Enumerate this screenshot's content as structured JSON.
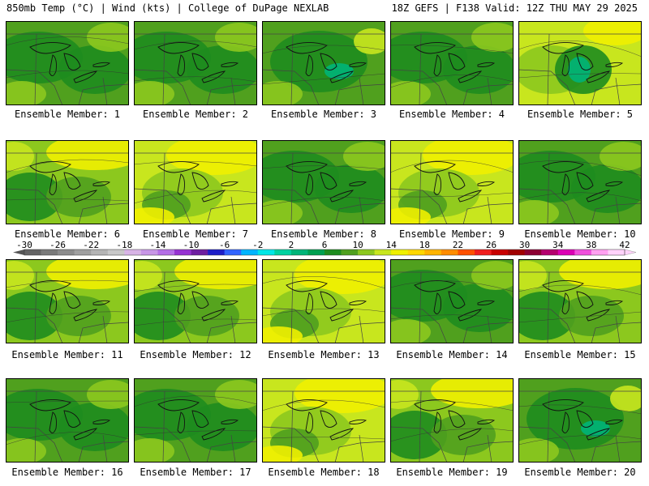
{
  "header": {
    "left": "850mb Temp (°C) | Wind (kts) | College of DuPage NEXLAB",
    "right": "18Z GEFS | F138 Valid: 12Z THU MAY 29 2025"
  },
  "colorbar": {
    "labels": [
      "-30",
      "-26",
      "-22",
      "-18",
      "-14",
      "-10",
      "-6",
      "-2",
      "2",
      "6",
      "10",
      "14",
      "18",
      "22",
      "26",
      "30",
      "34",
      "38",
      "42"
    ],
    "colors": [
      "#646464",
      "#7a7a7a",
      "#8c8c8c",
      "#a0a0a0",
      "#b4b4b4",
      "#c8c8c8",
      "#d8b4e6",
      "#c896e6",
      "#b46ee6",
      "#9632d2",
      "#6e1ea0",
      "#1e1ec8",
      "#3264ff",
      "#00b4ff",
      "#00e6e6",
      "#00d2a0",
      "#00b478",
      "#00a050",
      "#1e8c1e",
      "#50a01e",
      "#8cc81e",
      "#c8e61e",
      "#f0f000",
      "#ffd700",
      "#ffb400",
      "#ff8c00",
      "#ff5000",
      "#f01e1e",
      "#c80000",
      "#a00000",
      "#8c0032",
      "#b4006e",
      "#dc00b4",
      "#f050dc",
      "#ffa0f0",
      "#ffd2fa"
    ]
  },
  "colors": {
    "dark_green": "#1e8c1e",
    "green": "#50a01e",
    "lime": "#8cc81e",
    "yellow_green": "#c8e61e",
    "yellow": "#f0f000",
    "teal": "#00b478"
  },
  "members": [
    {
      "label": "Ensemble Member: 1",
      "theme": "green"
    },
    {
      "label": "Ensemble Member: 2",
      "theme": "green"
    },
    {
      "label": "Ensemble Member: 3",
      "theme": "green-teal"
    },
    {
      "label": "Ensemble Member: 4",
      "theme": "green"
    },
    {
      "label": "Ensemble Member: 5",
      "theme": "yellow-teal"
    },
    {
      "label": "Ensemble Member: 6",
      "theme": "green-yellow"
    },
    {
      "label": "Ensemble Member: 7",
      "theme": "yellow"
    },
    {
      "label": "Ensemble Member: 8",
      "theme": "green"
    },
    {
      "label": "Ensemble Member: 9",
      "theme": "yellow"
    },
    {
      "label": "Ensemble Member: 10",
      "theme": "green"
    },
    {
      "label": "Ensemble Member: 11",
      "theme": "green-yellow"
    },
    {
      "label": "Ensemble Member: 12",
      "theme": "green-yellow"
    },
    {
      "label": "Ensemble Member: 13",
      "theme": "yellow"
    },
    {
      "label": "Ensemble Member: 14",
      "theme": "green"
    },
    {
      "label": "Ensemble Member: 15",
      "theme": "green-yellow"
    },
    {
      "label": "Ensemble Member: 16",
      "theme": "green"
    },
    {
      "label": "Ensemble Member: 17",
      "theme": "green"
    },
    {
      "label": "Ensemble Member: 18",
      "theme": "yellow"
    },
    {
      "label": "Ensemble Member: 19",
      "theme": "green-yellow"
    },
    {
      "label": "Ensemble Member: 20",
      "theme": "green-teal"
    }
  ]
}
